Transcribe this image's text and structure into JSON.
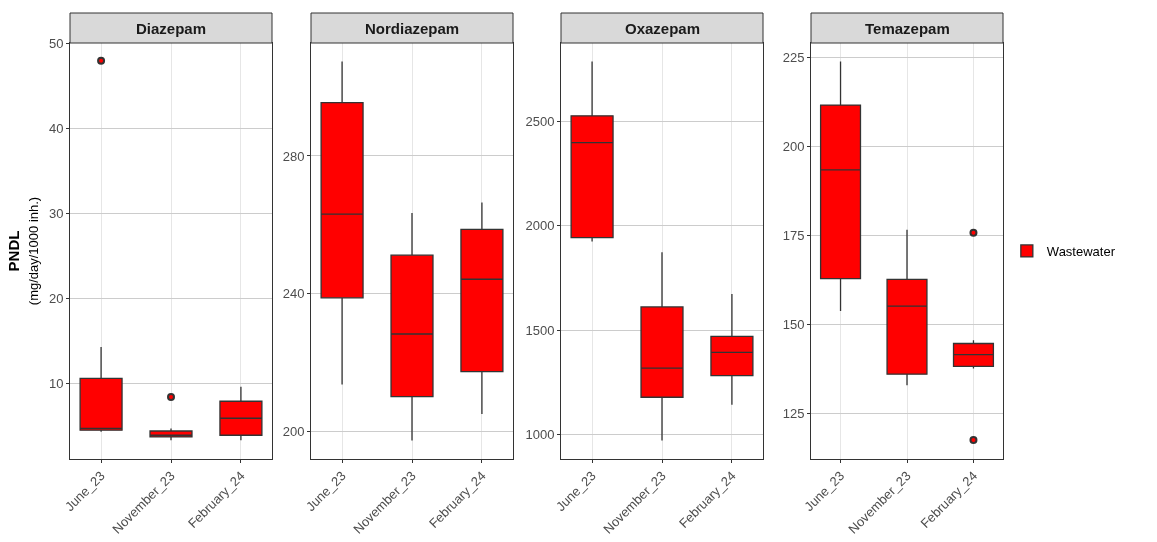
{
  "chart_data": [
    {
      "type": "box",
      "title": "Diazepam",
      "ylabel": "PNDL\n(mg/day/1000 inh.)",
      "categories": [
        "June_23",
        "November_23",
        "February_24"
      ],
      "ylim": [
        1.1,
        50.1
      ],
      "yticks": [
        10,
        20,
        30,
        40,
        50
      ],
      "grid": true,
      "series": [
        {
          "color": "#ff0000",
          "boxes": [
            {
              "low": 4.3,
              "q1": 4.5,
              "median": 4.7,
              "q3": 10.6,
              "high": 14.3,
              "outliers": [
                48
              ]
            },
            {
              "low": 3.3,
              "q1": 3.7,
              "median": 3.9,
              "q3": 4.4,
              "high": 4.7,
              "outliers": [
                8.4
              ]
            },
            {
              "low": 3.3,
              "q1": 3.9,
              "median": 5.9,
              "q3": 7.9,
              "high": 9.6
            }
          ]
        }
      ]
    },
    {
      "type": "box",
      "title": "Nordiazepam",
      "categories": [
        "June_23",
        "November_23",
        "February_24"
      ],
      "ylim": [
        192,
        312.8
      ],
      "yticks": [
        200,
        240,
        280
      ],
      "grid": true,
      "series": [
        {
          "color": "#ff0000",
          "boxes": [
            {
              "low": 213.6,
              "q1": 238.8,
              "median": 263.1,
              "q3": 295.5,
              "high": 307.4
            },
            {
              "low": 197.4,
              "q1": 210.1,
              "median": 228.3,
              "q3": 251.2,
              "high": 263.4
            },
            {
              "low": 205.1,
              "q1": 217.4,
              "median": 244.2,
              "q3": 258.7,
              "high": 266.5
            }
          ]
        }
      ]
    },
    {
      "type": "box",
      "title": "Oxazepam",
      "categories": [
        "June_23",
        "November_23",
        "February_24"
      ],
      "ylim": [
        882,
        2876
      ],
      "yticks": [
        1000,
        1500,
        2000,
        2500
      ],
      "grid": true,
      "series": [
        {
          "color": "#ff0000",
          "boxes": [
            {
              "low": 1925,
              "q1": 1943,
              "median": 2398,
              "q3": 2527,
              "high": 2787
            },
            {
              "low": 971,
              "q1": 1178,
              "median": 1318,
              "q3": 1611,
              "high": 1873
            },
            {
              "low": 1142,
              "q1": 1282,
              "median": 1393,
              "q3": 1470,
              "high": 1673
            }
          ]
        }
      ]
    },
    {
      "type": "box",
      "title": "Temazepam",
      "categories": [
        "June_23",
        "November_23",
        "February_24"
      ],
      "ylim": [
        112.3,
        229
      ],
      "yticks": [
        125,
        150,
        175,
        200,
        225
      ],
      "grid": true,
      "legend": "right",
      "series": [
        {
          "name": "Wastewater",
          "color": "#ff0000",
          "boxes": [
            {
              "low": 153.8,
              "q1": 162.9,
              "median": 193.4,
              "q3": 211.6,
              "high": 223.8
            },
            {
              "low": 133,
              "q1": 136.1,
              "median": 155.2,
              "q3": 162.7,
              "high": 176.6
            },
            {
              "low": 137.7,
              "q1": 138.3,
              "median": 141.6,
              "q3": 144.7,
              "high": 145.6,
              "outliers": [
                175.8,
                117.6
              ]
            }
          ]
        }
      ]
    }
  ]
}
